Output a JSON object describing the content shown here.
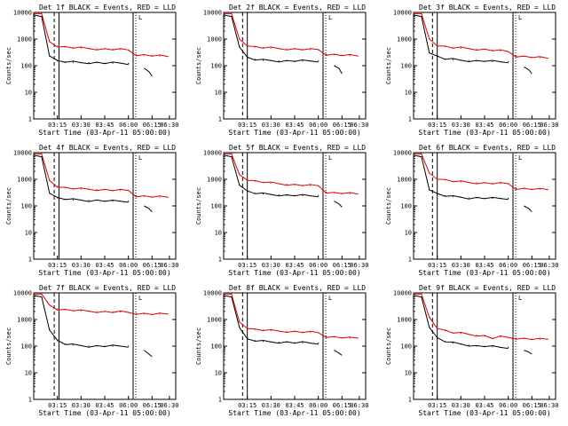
{
  "figure": {
    "xlabel": "Start Time (03-Apr-11 05:00:00)",
    "ylabel": "Counts/sec",
    "x_tick_labels": [
      "03:15",
      "03:30",
      "03:45",
      "06:00",
      "06:15",
      "06:30"
    ],
    "y_tick_labels": [
      "1",
      "10",
      "100",
      "1000",
      "10000"
    ],
    "colors": {
      "events": "#000000",
      "lld": "#e00000",
      "marker": "#000000"
    },
    "markers": [
      "L",
      "L",
      "L"
    ]
  },
  "chart_data": [
    {
      "type": "line",
      "title": "Det 1f BLACK = Events, RED = LLD",
      "xlim": [
        0,
        90
      ],
      "ylim": [
        1,
        10000
      ],
      "yscale": "log",
      "x": [
        0,
        5,
        10,
        15,
        20,
        25,
        30,
        35,
        40,
        45,
        50,
        55,
        60,
        65,
        70,
        75,
        80,
        85
      ],
      "series": [
        {
          "name": "Events",
          "values": [
            8000,
            7000,
            230,
            150,
            140,
            135,
            130,
            130,
            130,
            125,
            125,
            125,
            120,
            null,
            null,
            null,
            null,
            null
          ]
        },
        {
          "name": "LLD",
          "values": [
            9000,
            9000,
            800,
            550,
            500,
            480,
            460,
            440,
            430,
            420,
            410,
            400,
            390,
            260,
            250,
            240,
            230,
            220
          ]
        }
      ],
      "events_gap_tail": [
        [
          70,
          80
        ],
        [
          73,
          60
        ],
        [
          75,
          40
        ]
      ],
      "vlines_dashed": [
        13
      ],
      "vlines_solid": [
        16,
        63
      ]
    },
    {
      "type": "line",
      "title": "Det 2f BLACK = Events, RED = LLD",
      "xlim": [
        0,
        90
      ],
      "ylim": [
        1,
        10000
      ],
      "yscale": "log",
      "x": [
        0,
        5,
        10,
        15,
        20,
        25,
        30,
        35,
        40,
        45,
        50,
        55,
        60,
        65,
        70,
        75,
        80,
        85
      ],
      "series": [
        {
          "name": "Events",
          "values": [
            8000,
            7000,
            500,
            200,
            170,
            160,
            155,
            150,
            150,
            150,
            150,
            150,
            150,
            null,
            null,
            null,
            null,
            null
          ]
        },
        {
          "name": "LLD",
          "values": [
            9000,
            9000,
            1000,
            600,
            500,
            480,
            460,
            440,
            430,
            420,
            410,
            400,
            400,
            270,
            260,
            250,
            240,
            230
          ]
        }
      ],
      "events_gap_tail": [
        [
          70,
          100
        ],
        [
          73,
          80
        ],
        [
          75,
          50
        ]
      ],
      "vlines_dashed": [
        12
      ],
      "vlines_solid": [
        15,
        63
      ]
    },
    {
      "type": "line",
      "title": "Det 3f BLACK = Events, RED = LLD",
      "xlim": [
        0,
        90
      ],
      "ylim": [
        1,
        10000
      ],
      "yscale": "log",
      "x": [
        0,
        5,
        10,
        15,
        20,
        25,
        30,
        35,
        40,
        45,
        50,
        55,
        60,
        65,
        70,
        75,
        80,
        85
      ],
      "series": [
        {
          "name": "Events",
          "values": [
            8000,
            7000,
            300,
            220,
            180,
            170,
            160,
            155,
            150,
            150,
            145,
            140,
            140,
            null,
            null,
            null,
            null,
            null
          ]
        },
        {
          "name": "LLD",
          "values": [
            9000,
            9000,
            1000,
            600,
            520,
            480,
            460,
            440,
            420,
            400,
            380,
            360,
            340,
            230,
            220,
            210,
            200,
            190
          ]
        }
      ],
      "events_gap_tail": [
        [
          70,
          90
        ],
        [
          73,
          70
        ],
        [
          75,
          50
        ]
      ],
      "vlines_dashed": [
        12
      ],
      "vlines_solid": [
        15,
        63
      ]
    },
    {
      "type": "line",
      "title": "Det 4f BLACK = Events, RED = LLD",
      "xlim": [
        0,
        90
      ],
      "ylim": [
        1,
        10000
      ],
      "yscale": "log",
      "x": [
        0,
        5,
        10,
        15,
        20,
        25,
        30,
        35,
        40,
        45,
        50,
        55,
        60,
        65,
        70,
        75,
        80,
        85
      ],
      "series": [
        {
          "name": "Events",
          "values": [
            8000,
            7000,
            300,
            200,
            180,
            170,
            165,
            160,
            160,
            155,
            150,
            150,
            150,
            null,
            null,
            null,
            null,
            null
          ]
        },
        {
          "name": "LLD",
          "values": [
            9000,
            9000,
            900,
            550,
            480,
            450,
            430,
            420,
            410,
            400,
            390,
            380,
            380,
            240,
            230,
            220,
            215,
            210
          ]
        }
      ],
      "events_gap_tail": [
        [
          70,
          100
        ],
        [
          73,
          80
        ],
        [
          75,
          60
        ]
      ],
      "vlines_dashed": [
        13
      ],
      "vlines_solid": [
        16,
        63
      ]
    },
    {
      "type": "line",
      "title": "Det 5f BLACK = Events, RED = LLD",
      "xlim": [
        0,
        90
      ],
      "ylim": [
        1,
        10000
      ],
      "yscale": "log",
      "x": [
        0,
        5,
        10,
        15,
        20,
        25,
        30,
        35,
        40,
        45,
        50,
        55,
        60,
        65,
        70,
        75,
        80,
        85
      ],
      "series": [
        {
          "name": "Events",
          "values": [
            8000,
            7000,
            600,
            350,
            300,
            280,
            270,
            260,
            250,
            250,
            245,
            240,
            240,
            null,
            null,
            null,
            null,
            null
          ]
        },
        {
          "name": "LLD",
          "values": [
            9000,
            9000,
            1500,
            1000,
            850,
            780,
            720,
            680,
            650,
            620,
            600,
            580,
            570,
            330,
            310,
            300,
            290,
            280
          ]
        }
      ],
      "events_gap_tail": [
        [
          70,
          150
        ],
        [
          73,
          120
        ],
        [
          75,
          90
        ]
      ],
      "vlines_dashed": [
        12
      ],
      "vlines_solid": [
        15,
        63
      ]
    },
    {
      "type": "line",
      "title": "Det 6f BLACK = Events, RED = LLD",
      "xlim": [
        0,
        90
      ],
      "ylim": [
        1,
        10000
      ],
      "yscale": "log",
      "x": [
        0,
        5,
        10,
        15,
        20,
        25,
        30,
        35,
        40,
        45,
        50,
        55,
        60,
        65,
        70,
        75,
        80,
        85
      ],
      "series": [
        {
          "name": "Events",
          "values": [
            8000,
            7000,
            400,
            280,
            240,
            220,
            210,
            200,
            200,
            195,
            190,
            190,
            190,
            null,
            null,
            null,
            null,
            null
          ]
        },
        {
          "name": "LLD",
          "values": [
            9000,
            9000,
            1700,
            1100,
            950,
            850,
            800,
            760,
            740,
            720,
            700,
            690,
            680,
            450,
            440,
            430,
            420,
            410
          ]
        }
      ],
      "events_gap_tail": [
        [
          70,
          100
        ],
        [
          73,
          80
        ],
        [
          75,
          60
        ]
      ],
      "vlines_dashed": [
        12
      ],
      "vlines_solid": [
        15,
        63
      ]
    },
    {
      "type": "line",
      "title": "Det 7f BLACK = Events, RED = LLD",
      "xlim": [
        0,
        90
      ],
      "ylim": [
        1,
        10000
      ],
      "yscale": "log",
      "x": [
        0,
        5,
        10,
        15,
        20,
        25,
        30,
        35,
        40,
        45,
        50,
        55,
        60,
        65,
        70,
        75,
        80,
        85
      ],
      "series": [
        {
          "name": "Events",
          "values": [
            8000,
            7000,
            400,
            160,
            120,
            110,
            105,
            100,
            100,
            100,
            100,
            100,
            100,
            null,
            null,
            null,
            null,
            null
          ]
        },
        {
          "name": "LLD",
          "values": [
            9000,
            9000,
            3500,
            2500,
            2300,
            2200,
            2100,
            2050,
            2000,
            1950,
            1900,
            1900,
            1850,
            1700,
            1650,
            1600,
            1600,
            1600
          ]
        }
      ],
      "events_gap_tail": [
        [
          70,
          70
        ],
        [
          73,
          50
        ],
        [
          75,
          40
        ]
      ],
      "vlines_dashed": [
        13
      ],
      "vlines_solid": [
        16,
        63
      ]
    },
    {
      "type": "line",
      "title": "Det 8f BLACK = Events, RED = LLD",
      "xlim": [
        0,
        90
      ],
      "ylim": [
        1,
        10000
      ],
      "yscale": "log",
      "x": [
        0,
        5,
        10,
        15,
        20,
        25,
        30,
        35,
        40,
        45,
        50,
        55,
        60,
        65,
        70,
        75,
        80,
        85
      ],
      "series": [
        {
          "name": "Events",
          "values": [
            8000,
            7000,
            500,
            180,
            160,
            150,
            145,
            140,
            140,
            135,
            135,
            130,
            130,
            null,
            null,
            null,
            null,
            null
          ]
        },
        {
          "name": "LLD",
          "values": [
            9000,
            9000,
            800,
            500,
            420,
            400,
            380,
            370,
            360,
            350,
            340,
            330,
            320,
            230,
            220,
            210,
            200,
            200
          ]
        }
      ],
      "events_gap_tail": [
        [
          70,
          70
        ],
        [
          73,
          55
        ],
        [
          75,
          45
        ]
      ],
      "vlines_dashed": [
        12
      ],
      "vlines_solid": [
        15,
        63
      ]
    },
    {
      "type": "line",
      "title": "Det 9f BLACK = Events, RED = LLD",
      "xlim": [
        0,
        90
      ],
      "ylim": [
        1,
        10000
      ],
      "yscale": "log",
      "x": [
        0,
        5,
        10,
        15,
        20,
        25,
        30,
        35,
        40,
        45,
        50,
        55,
        60,
        65,
        70,
        75,
        80,
        85
      ],
      "series": [
        {
          "name": "Events",
          "values": [
            8000,
            7000,
            500,
            200,
            150,
            130,
            120,
            110,
            100,
            100,
            95,
            90,
            90,
            null,
            null,
            null,
            null,
            null
          ]
        },
        {
          "name": "LLD",
          "values": [
            9000,
            9000,
            1200,
            500,
            380,
            320,
            300,
            280,
            260,
            240,
            200,
            220,
            210,
            200,
            190,
            185,
            180,
            180
          ]
        }
      ],
      "events_gap_tail": [
        [
          70,
          70
        ],
        [
          73,
          60
        ],
        [
          75,
          50
        ]
      ],
      "vlines_dashed": [
        12
      ],
      "vlines_solid": [
        15,
        63
      ]
    }
  ]
}
